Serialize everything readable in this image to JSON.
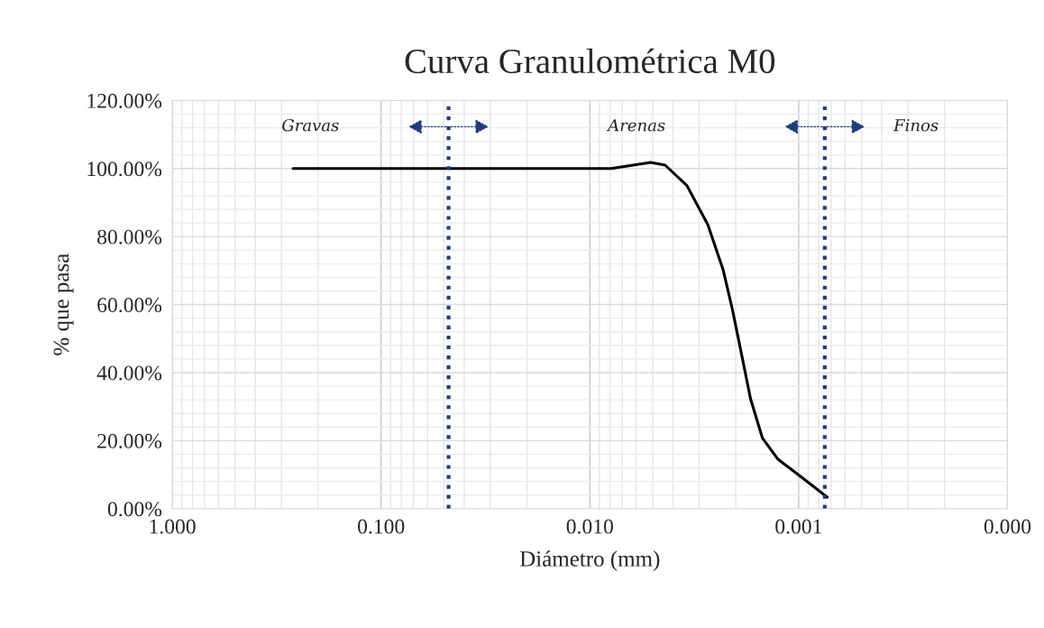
{
  "chart_data": {
    "type": "line",
    "title": "Curva Granulométrica M0",
    "xlabel": "Diámetro (mm)",
    "ylabel": "% que pasa",
    "log": "x",
    "grid": true,
    "marker": "none",
    "line_style": "solid",
    "series": [
      {
        "color": "#000000",
        "x": [
          0.264,
          0.1,
          0.03,
          0.01,
          0.0079,
          0.00511,
          0.00436,
          0.00343,
          0.00272,
          0.0023,
          0.00208,
          0.00188,
          0.0017,
          0.00149,
          0.00126,
          0.00097,
          0.00073
        ],
        "values": [
          100,
          100,
          100,
          100,
          100,
          101.8,
          101,
          95,
          83.4,
          70.2,
          58.8,
          45.6,
          32.3,
          20.7,
          14.6,
          9.3,
          3.4
        ]
      }
    ],
    "xlim": [
      1,
      0.0001
    ],
    "xticks": [
      {
        "value": 1,
        "label": "1.000"
      },
      {
        "value": 0.1,
        "label": "0.100"
      },
      {
        "value": 0.01,
        "label": "0.010"
      },
      {
        "value": 0.001,
        "label": "0.001"
      },
      {
        "value": 0.0001,
        "label": "0.000"
      }
    ],
    "ylim": [
      0,
      120
    ],
    "yticks": [
      {
        "value": 0,
        "label": "0.00%"
      },
      {
        "value": 20,
        "label": "20.00%"
      },
      {
        "value": 40,
        "label": "40.00%"
      },
      {
        "value": 60,
        "label": "60.00%"
      },
      {
        "value": 80,
        "label": "80.00%"
      },
      {
        "value": 100,
        "label": "100.00%"
      },
      {
        "value": 120,
        "label": "120.00%"
      }
    ],
    "ref_lines": [
      {
        "axis": "x",
        "value": 0.0475,
        "color": "#1f3b7a",
        "line_style": "dotted"
      },
      {
        "axis": "x",
        "value": 0.00075,
        "color": "#1f3b7a",
        "line_style": "dotted"
      }
    ],
    "annotations": [
      "Gravas",
      "Arenas",
      "Finos"
    ]
  }
}
